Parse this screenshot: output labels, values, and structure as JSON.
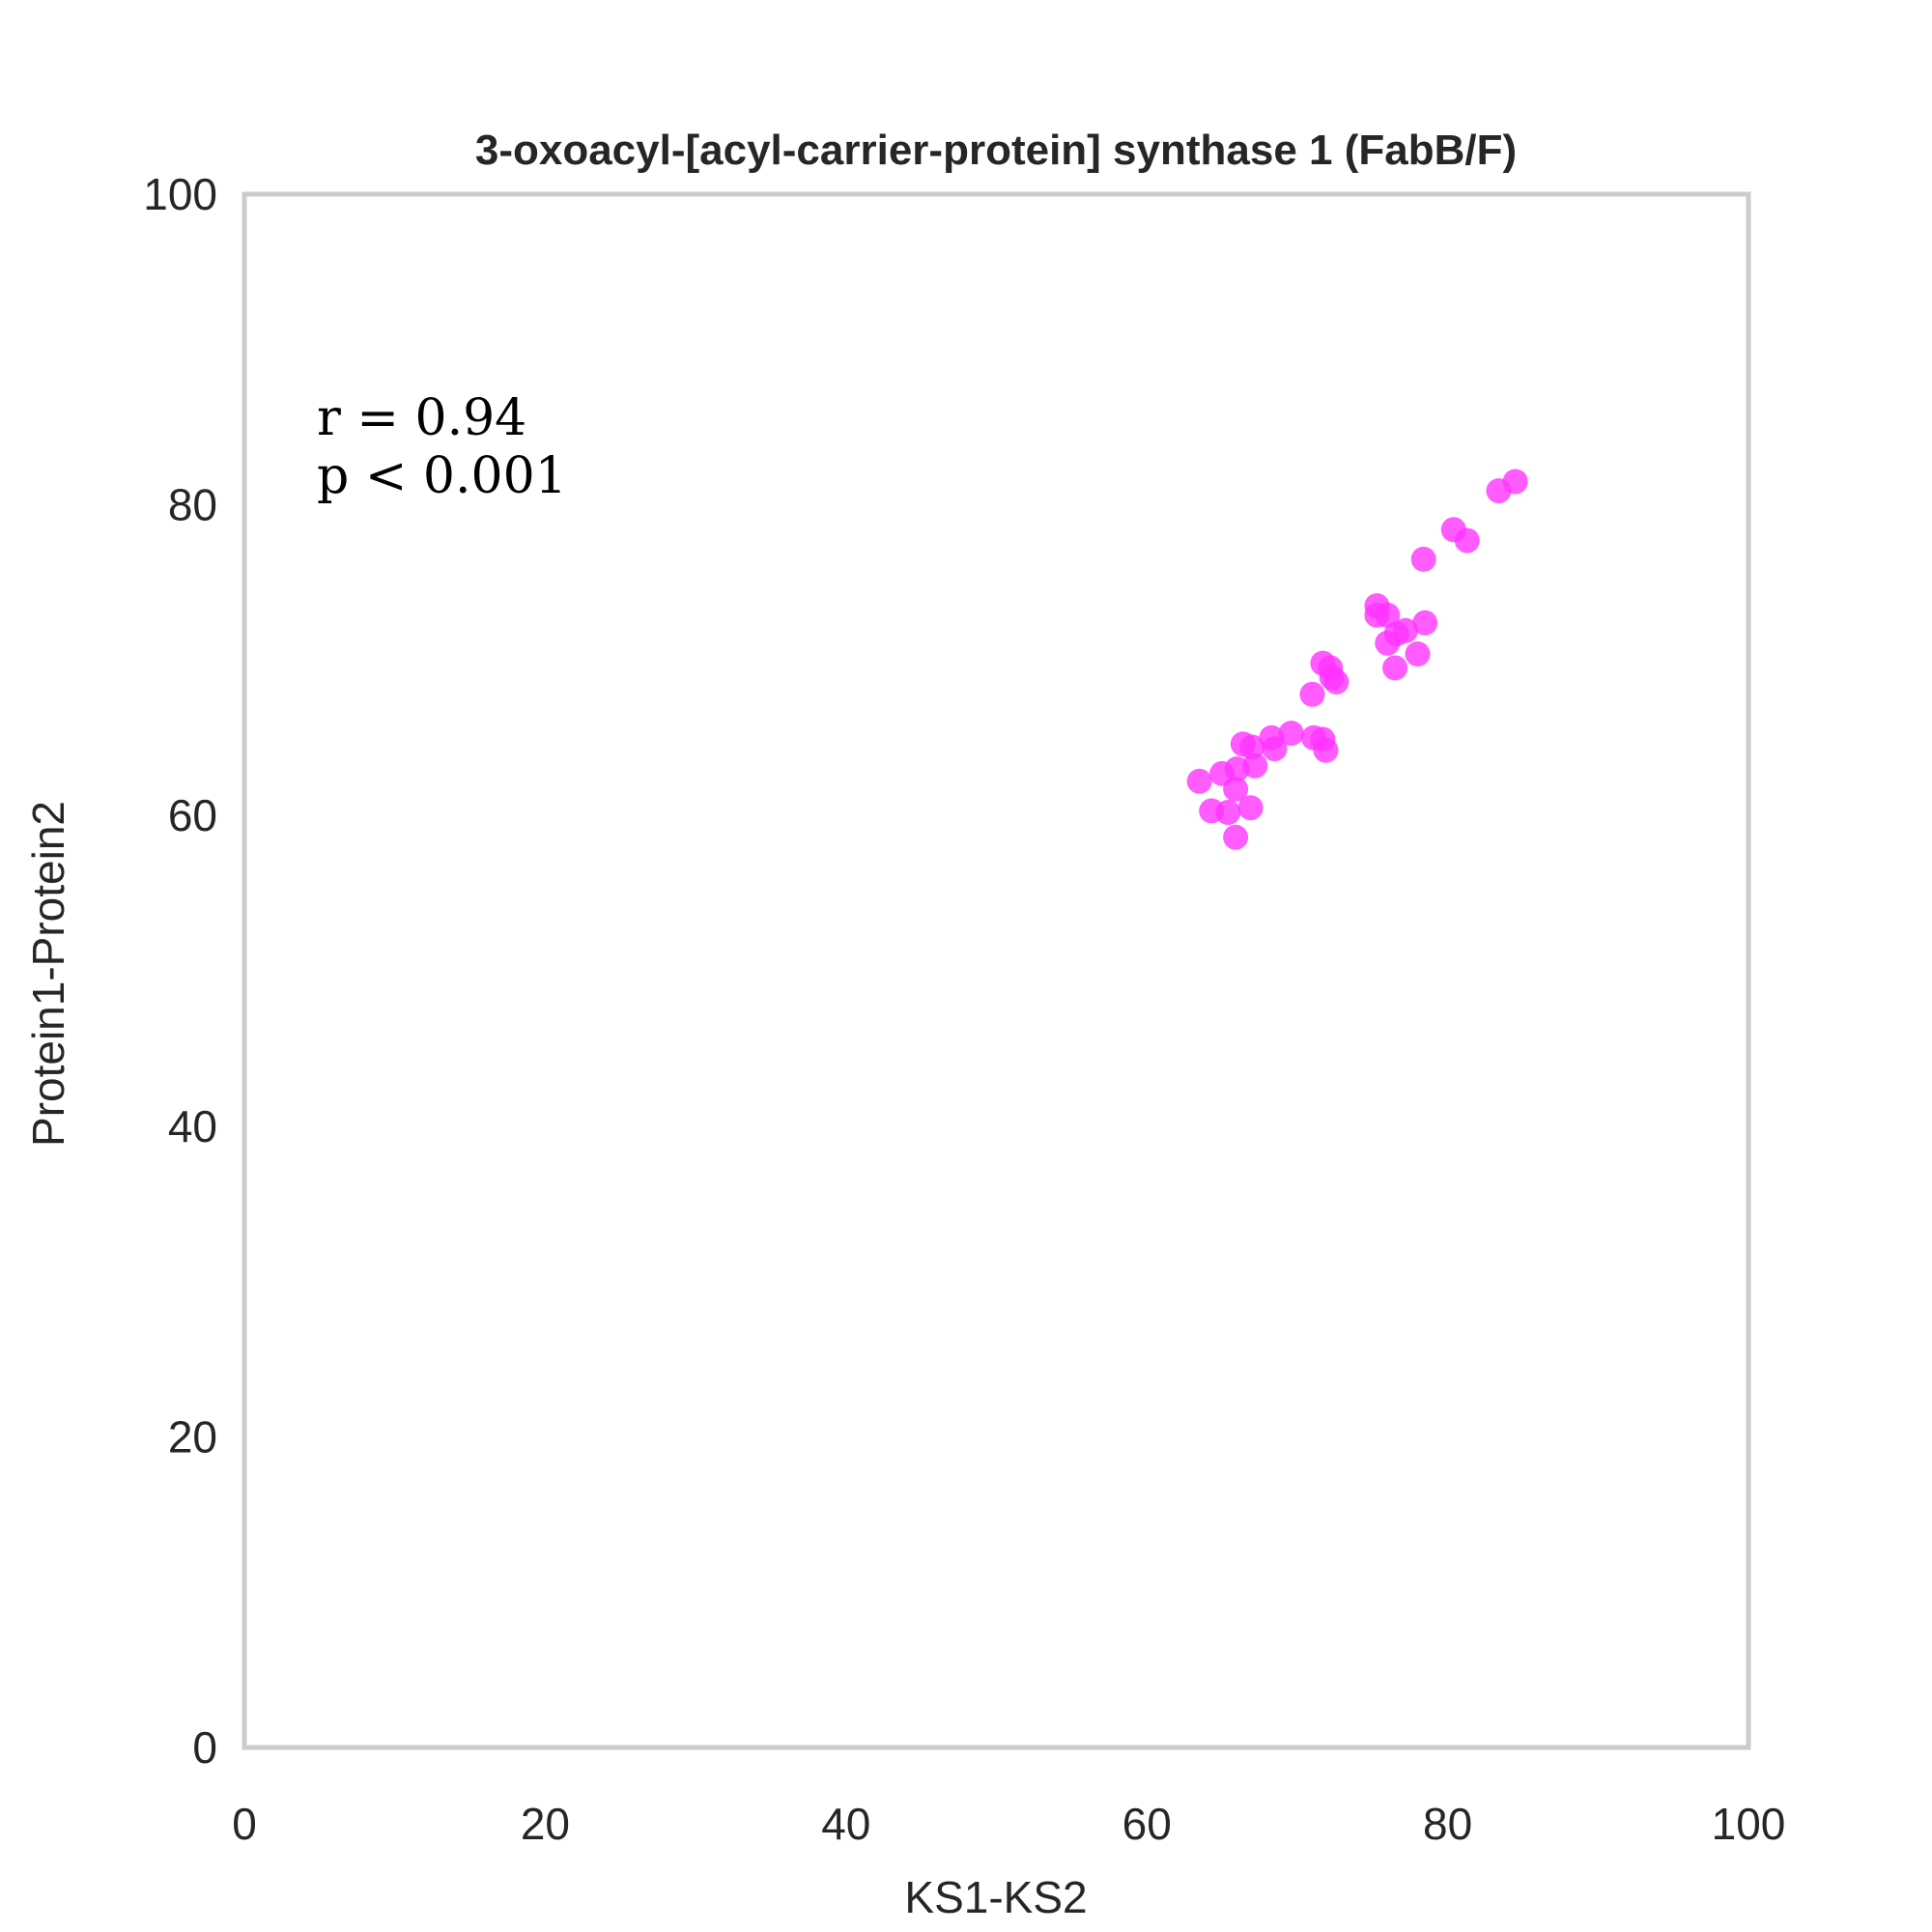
{
  "chart_data": {
    "type": "scatter",
    "title": "3-oxoacyl-[acyl-carrier-protein] synthase 1 (FabB/F)",
    "xlabel": "KS1-KS2",
    "ylabel": "Protein1-Protein2",
    "xlim": [
      0,
      100
    ],
    "ylim": [
      0,
      100
    ],
    "xticks": [
      "0",
      "20",
      "40",
      "60",
      "80",
      "100"
    ],
    "yticks": [
      "0",
      "20",
      "40",
      "60",
      "80",
      "100"
    ],
    "grid": false,
    "point_color": "#ff33ff",
    "frame_color": "#cccccc",
    "annotation": {
      "r_label": "r = 0.94",
      "p_label": "p < 0.001"
    },
    "points": [
      {
        "x": 63.5,
        "y": 62.2
      },
      {
        "x": 64.3,
        "y": 60.3
      },
      {
        "x": 65.0,
        "y": 62.7
      },
      {
        "x": 65.4,
        "y": 60.2
      },
      {
        "x": 65.9,
        "y": 61.7
      },
      {
        "x": 66.0,
        "y": 63.0
      },
      {
        "x": 65.9,
        "y": 58.6
      },
      {
        "x": 66.4,
        "y": 64.6
      },
      {
        "x": 67.0,
        "y": 64.4
      },
      {
        "x": 67.2,
        "y": 63.2
      },
      {
        "x": 66.9,
        "y": 60.5
      },
      {
        "x": 68.3,
        "y": 65.0
      },
      {
        "x": 68.5,
        "y": 64.3
      },
      {
        "x": 69.6,
        "y": 65.3
      },
      {
        "x": 71.0,
        "y": 67.8
      },
      {
        "x": 71.1,
        "y": 65.0
      },
      {
        "x": 71.7,
        "y": 64.9
      },
      {
        "x": 71.9,
        "y": 64.2
      },
      {
        "x": 71.7,
        "y": 69.8
      },
      {
        "x": 72.2,
        "y": 69.5
      },
      {
        "x": 72.3,
        "y": 68.9
      },
      {
        "x": 72.6,
        "y": 68.6
      },
      {
        "x": 75.3,
        "y": 73.5
      },
      {
        "x": 75.3,
        "y": 72.9
      },
      {
        "x": 76.0,
        "y": 72.9
      },
      {
        "x": 76.0,
        "y": 71.1
      },
      {
        "x": 76.6,
        "y": 71.7
      },
      {
        "x": 77.2,
        "y": 71.9
      },
      {
        "x": 76.5,
        "y": 69.5
      },
      {
        "x": 78.0,
        "y": 70.4
      },
      {
        "x": 78.5,
        "y": 72.4
      },
      {
        "x": 78.4,
        "y": 76.5
      },
      {
        "x": 80.4,
        "y": 78.4
      },
      {
        "x": 81.3,
        "y": 77.7
      },
      {
        "x": 83.4,
        "y": 80.9
      },
      {
        "x": 84.5,
        "y": 81.5
      }
    ]
  }
}
